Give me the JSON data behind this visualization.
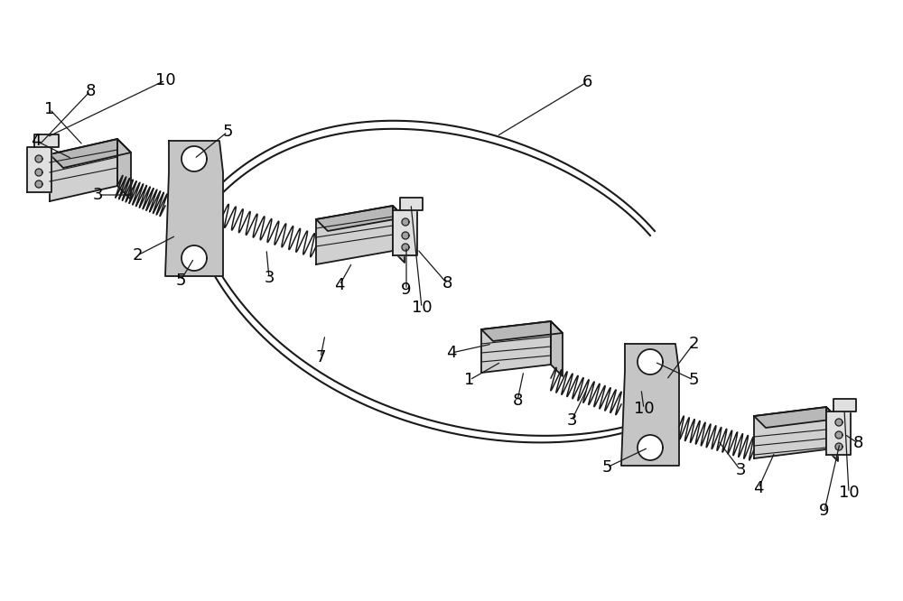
{
  "bg_color": "#ffffff",
  "line_color": "#1a1a1a",
  "label_color": "#000000",
  "label_fontsize": 13,
  "figsize": [
    10.0,
    6.66
  ],
  "dpi": 100
}
